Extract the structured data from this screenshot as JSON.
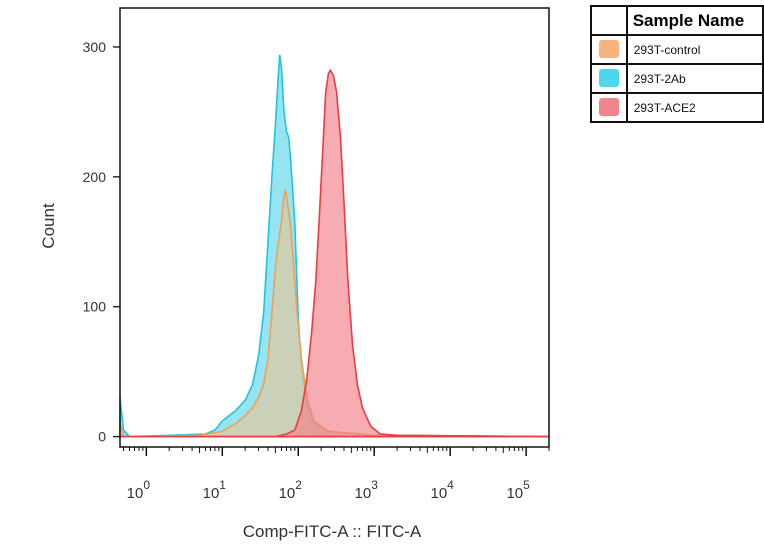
{
  "chart_data": {
    "type": "area",
    "xlabel": "Comp-FITC-A :: FITC-A",
    "ylabel": "Count",
    "x_scale": "log",
    "xlim": [
      0.45,
      200000
    ],
    "ylim": [
      -8,
      330
    ],
    "y_ticks": [
      0,
      100,
      200,
      300
    ],
    "x_ticks": [
      {
        "value": 1,
        "base": "10",
        "exp": "0"
      },
      {
        "value": 10,
        "base": "10",
        "exp": "1"
      },
      {
        "value": 100,
        "base": "10",
        "exp": "2"
      },
      {
        "value": 1000,
        "base": "10",
        "exp": "3"
      },
      {
        "value": 10000,
        "base": "10",
        "exp": "4"
      },
      {
        "value": 100000,
        "base": "10",
        "exp": "5"
      }
    ],
    "series": [
      {
        "name": "293T-2Ab",
        "fill": "#5cd6ea",
        "stroke": "#21c4e0",
        "points": [
          [
            0.45,
            30
          ],
          [
            0.5,
            5
          ],
          [
            0.6,
            0
          ],
          [
            2,
            1
          ],
          [
            6,
            2
          ],
          [
            8,
            5
          ],
          [
            10,
            12
          ],
          [
            15,
            20
          ],
          [
            20,
            28
          ],
          [
            25,
            40
          ],
          [
            30,
            62
          ],
          [
            35,
            95
          ],
          [
            40,
            150
          ],
          [
            45,
            200
          ],
          [
            50,
            240
          ],
          [
            55,
            280
          ],
          [
            57,
            294
          ],
          [
            60,
            285
          ],
          [
            65,
            250
          ],
          [
            70,
            235
          ],
          [
            75,
            230
          ],
          [
            80,
            210
          ],
          [
            90,
            165
          ],
          [
            100,
            90
          ],
          [
            110,
            55
          ],
          [
            130,
            25
          ],
          [
            160,
            10
          ],
          [
            250,
            4
          ],
          [
            1000,
            1
          ],
          [
            200000,
            0
          ]
        ]
      },
      {
        "name": "293T-control",
        "fill": "#e8c49a",
        "stroke": "#f0a050",
        "points": [
          [
            0.45,
            10
          ],
          [
            0.5,
            0
          ],
          [
            0.6,
            0
          ],
          [
            5,
            1
          ],
          [
            10,
            4
          ],
          [
            15,
            10
          ],
          [
            20,
            16
          ],
          [
            25,
            22
          ],
          [
            30,
            30
          ],
          [
            35,
            40
          ],
          [
            40,
            60
          ],
          [
            45,
            95
          ],
          [
            50,
            130
          ],
          [
            55,
            150
          ],
          [
            60,
            165
          ],
          [
            65,
            185
          ],
          [
            68,
            190
          ],
          [
            72,
            180
          ],
          [
            78,
            165
          ],
          [
            85,
            140
          ],
          [
            95,
            100
          ],
          [
            110,
            60
          ],
          [
            130,
            30
          ],
          [
            160,
            12
          ],
          [
            250,
            4
          ],
          [
            1000,
            1
          ],
          [
            200000,
            0
          ]
        ]
      },
      {
        "name": "293T-ACE2",
        "fill": "#f28088",
        "stroke": "#e83c46",
        "points": [
          [
            0.45,
            0
          ],
          [
            50,
            0
          ],
          [
            70,
            2
          ],
          [
            90,
            5
          ],
          [
            110,
            20
          ],
          [
            130,
            45
          ],
          [
            150,
            80
          ],
          [
            170,
            120
          ],
          [
            190,
            170
          ],
          [
            210,
            220
          ],
          [
            230,
            265
          ],
          [
            250,
            280
          ],
          [
            265,
            282
          ],
          [
            290,
            278
          ],
          [
            320,
            265
          ],
          [
            360,
            230
          ],
          [
            400,
            180
          ],
          [
            450,
            120
          ],
          [
            520,
            70
          ],
          [
            600,
            40
          ],
          [
            700,
            22
          ],
          [
            900,
            8
          ],
          [
            1200,
            2
          ],
          [
            2000,
            1
          ],
          [
            200000,
            0
          ]
        ]
      }
    ],
    "legend": {
      "header": "Sample Name",
      "placement": "top-right",
      "entries": [
        {
          "label": "293T-control",
          "color": "#f6b37c"
        },
        {
          "label": "293T-2Ab",
          "color": "#4fd6ee"
        },
        {
          "label": "293T-ACE2",
          "color": "#f2848c"
        }
      ]
    }
  }
}
